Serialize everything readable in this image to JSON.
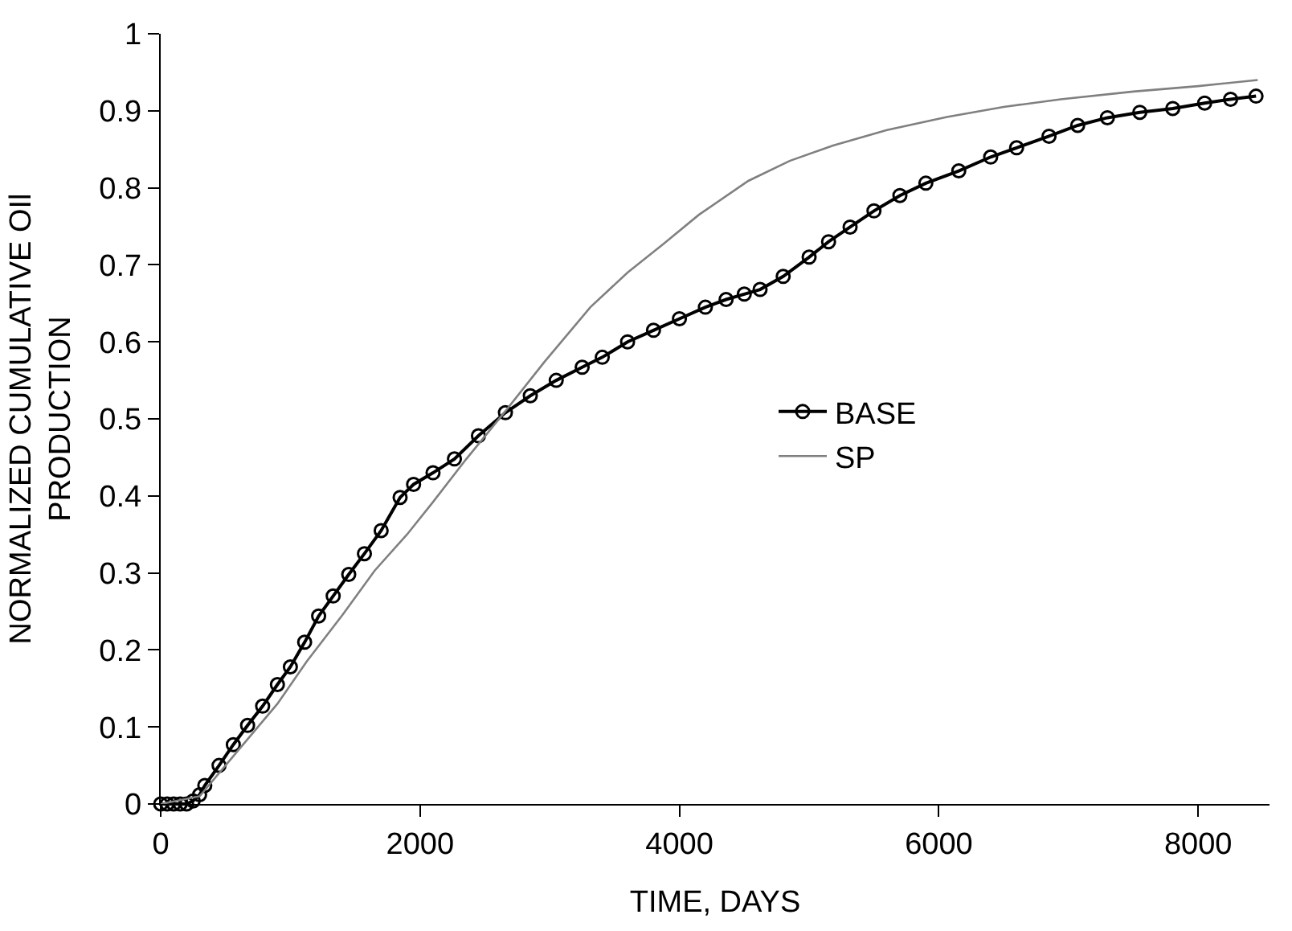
{
  "chart_data": {
    "type": "line",
    "xlabel": "TIME, DAYS",
    "ylabel": "NORMALIZED CUMULATIVE OIl\nPRODUCTION",
    "xlim": [
      0,
      8550
    ],
    "xticks": [
      0,
      2000,
      4000,
      6000,
      8000
    ],
    "ylim": [
      0,
      1
    ],
    "yticks": [
      0,
      0.1,
      0.2,
      0.3,
      0.4,
      0.5,
      0.6,
      0.7,
      0.8,
      0.9,
      1
    ],
    "legend": "right",
    "series": [
      {
        "name": "BASE",
        "color": "#000000",
        "marker": "circle",
        "x": [
          0,
          50,
          100,
          150,
          200,
          250,
          300,
          340,
          450,
          560,
          670,
          786,
          900,
          1000,
          1110,
          1218,
          1330,
          1450,
          1571,
          1700,
          1846,
          1950,
          2100,
          2265,
          2450,
          2658,
          2850,
          3050,
          3250,
          3405,
          3600,
          3800,
          4000,
          4200,
          4360,
          4500,
          4622,
          4800,
          5000,
          5150,
          5316,
          5500,
          5700,
          5900,
          6154,
          6400,
          6600,
          6850,
          7071,
          7300,
          7550,
          7804,
          8050,
          8250,
          8446
        ],
        "values": [
          0,
          0,
          0,
          0,
          0,
          0.004,
          0.012,
          0.024,
          0.05,
          0.077,
          0.102,
          0.127,
          0.155,
          0.178,
          0.21,
          0.244,
          0.27,
          0.298,
          0.325,
          0.355,
          0.398,
          0.415,
          0.43,
          0.448,
          0.478,
          0.508,
          0.53,
          0.55,
          0.567,
          0.58,
          0.6,
          0.615,
          0.63,
          0.645,
          0.655,
          0.662,
          0.668,
          0.685,
          0.71,
          0.73,
          0.749,
          0.77,
          0.79,
          0.806,
          0.822,
          0.84,
          0.852,
          0.867,
          0.881,
          0.891,
          0.898,
          0.903,
          0.91,
          0.915,
          0.919
        ]
      },
      {
        "name": "SP",
        "color": "#808080",
        "marker": "none",
        "x": [
          0,
          300,
          600,
          900,
          1126,
          1400,
          1650,
          1900,
          2095,
          2357,
          2658,
          2959,
          3313,
          3600,
          3876,
          4150,
          4531,
          4850,
          5185,
          5600,
          6063,
          6500,
          6940,
          7500,
          8000,
          8459
        ],
        "values": [
          0,
          0.01,
          0.07,
          0.13,
          0.185,
          0.245,
          0.303,
          0.35,
          0.391,
          0.448,
          0.51,
          0.574,
          0.645,
          0.69,
          0.727,
          0.765,
          0.809,
          0.835,
          0.855,
          0.875,
          0.892,
          0.905,
          0.915,
          0.925,
          0.932,
          0.94
        ]
      }
    ]
  }
}
